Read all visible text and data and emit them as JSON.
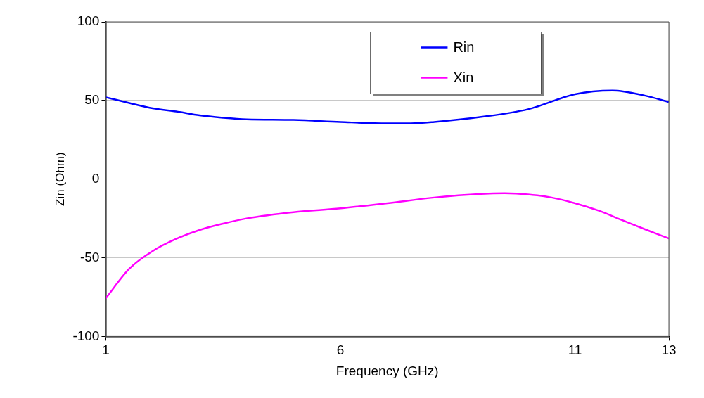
{
  "chart_data": {
    "type": "line",
    "xlabel": "Frequency (GHz)",
    "ylabel": "Zin (Ohm)",
    "xlim": [
      1,
      13
    ],
    "xticks": [
      1,
      6,
      11,
      13
    ],
    "ylim": [
      -100,
      100
    ],
    "yticks": [
      -100,
      -50,
      0,
      50,
      100
    ],
    "grid": true,
    "legend": "top",
    "marker": "none",
    "line_style": "solid",
    "series": [
      {
        "name": "Rin",
        "color": "#0000ff",
        "x": [
          1,
          1.5,
          2,
          2.5,
          3,
          3.5,
          4,
          5,
          6,
          7,
          7.5,
          8,
          9,
          10,
          11,
          11.8,
          12.5,
          13
        ],
        "values": [
          52,
          48.4,
          45,
          43,
          40.5,
          39,
          38,
          37.6,
          36.3,
          35.4,
          35.4,
          36.3,
          39.5,
          44.4,
          54,
          56.3,
          53,
          49
        ]
      },
      {
        "name": "Xin",
        "color": "#ff00ff",
        "x": [
          1,
          1.5,
          2,
          2.5,
          3,
          3.5,
          4,
          5,
          6,
          7,
          8,
          9,
          9.5,
          10,
          10.5,
          11,
          11.5,
          12,
          12.5,
          13
        ],
        "values": [
          -75.8,
          -57,
          -45.7,
          -38,
          -32.3,
          -28.3,
          -25,
          -21,
          -18.6,
          -15.3,
          -11.7,
          -9.4,
          -9,
          -9.7,
          -11.7,
          -15.3,
          -20,
          -26,
          -32,
          -37.7
        ]
      }
    ]
  }
}
